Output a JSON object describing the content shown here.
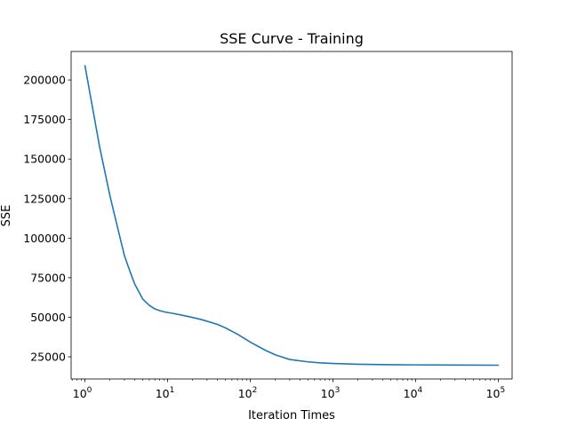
{
  "chart_data": {
    "type": "line",
    "title": "SSE Curve - Training",
    "xlabel": "Iteration Times",
    "ylabel": "SSE",
    "xscale": "log",
    "xlim": [
      0.68,
      147000
    ],
    "ylim": [
      11000,
      218000
    ],
    "x_ticks": [
      {
        "value": 1,
        "base": "10",
        "exp": "0"
      },
      {
        "value": 10,
        "base": "10",
        "exp": "1"
      },
      {
        "value": 100,
        "base": "10",
        "exp": "2"
      },
      {
        "value": 1000,
        "base": "10",
        "exp": "3"
      },
      {
        "value": 10000,
        "base": "10",
        "exp": "4"
      },
      {
        "value": 100000,
        "base": "10",
        "exp": "5"
      }
    ],
    "y_ticks": [
      {
        "value": 25000,
        "label": "25000"
      },
      {
        "value": 50000,
        "label": "50000"
      },
      {
        "value": 75000,
        "label": "75000"
      },
      {
        "value": 100000,
        "label": "100000"
      },
      {
        "value": 125000,
        "label": "125000"
      },
      {
        "value": 150000,
        "label": "150000"
      },
      {
        "value": 175000,
        "label": "175000"
      },
      {
        "value": 200000,
        "label": "200000"
      }
    ],
    "grid": false,
    "series": [
      {
        "color": "#1f77b4",
        "x": [
          1,
          1.5,
          2,
          2.5,
          3,
          3.5,
          4,
          4.5,
          5,
          6,
          7,
          8,
          9,
          10,
          12,
          15,
          20,
          25,
          30,
          40,
          50,
          70,
          100,
          150,
          200,
          300,
          500,
          700,
          1000,
          2000,
          5000,
          10000,
          100000
        ],
        "y": [
          209000,
          158000,
          127000,
          106000,
          89000,
          79000,
          71000,
          66000,
          61500,
          57500,
          55300,
          54200,
          53500,
          53000,
          52300,
          51300,
          49900,
          48700,
          47500,
          45500,
          43300,
          39300,
          34300,
          29300,
          26300,
          23300,
          21800,
          21200,
          20800,
          20300,
          20000,
          19900,
          19700
        ]
      }
    ]
  }
}
